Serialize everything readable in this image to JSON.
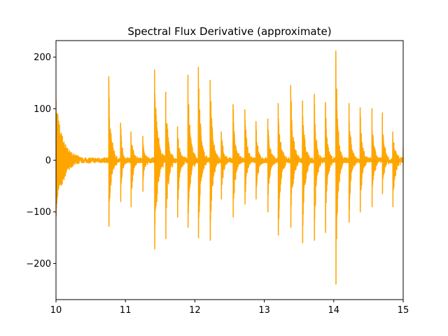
{
  "chart_data": {
    "type": "line",
    "title": "Spectral Flux Derivative (approximate)",
    "xlabel": "",
    "ylabel": "",
    "xlim": [
      10,
      15
    ],
    "ylim": [
      -270,
      232
    ],
    "x_ticks": [
      10,
      11,
      12,
      13,
      14,
      15
    ],
    "x_tick_labels": [
      "10",
      "11",
      "12",
      "13",
      "14",
      "15"
    ],
    "y_ticks": [
      -200,
      -100,
      0,
      100,
      200
    ],
    "y_tick_labels": [
      "−200",
      "−100",
      "0",
      "100",
      "200"
    ],
    "grid": false,
    "line_color": "#ffa500",
    "series": [
      {
        "onsets": [
          {
            "x": 10.0,
            "max": 115,
            "min": -108,
            "tail": 0.35
          },
          {
            "x": 10.76,
            "max": 162,
            "min": -128,
            "tail": 0.12
          },
          {
            "x": 10.93,
            "max": 72,
            "min": -80,
            "tail": 0.08
          },
          {
            "x": 11.08,
            "max": 55,
            "min": -90,
            "tail": 0.1
          },
          {
            "x": 11.25,
            "max": 45,
            "min": -60,
            "tail": 0.08
          },
          {
            "x": 11.42,
            "max": 175,
            "min": -172,
            "tail": 0.15
          },
          {
            "x": 11.58,
            "max": 132,
            "min": -152,
            "tail": 0.12
          },
          {
            "x": 11.75,
            "max": 65,
            "min": -110,
            "tail": 0.1
          },
          {
            "x": 11.9,
            "max": 165,
            "min": -130,
            "tail": 0.12
          },
          {
            "x": 12.05,
            "max": 180,
            "min": -150,
            "tail": 0.12
          },
          {
            "x": 12.22,
            "max": 155,
            "min": -155,
            "tail": 0.12
          },
          {
            "x": 12.38,
            "max": 55,
            "min": -75,
            "tail": 0.1
          },
          {
            "x": 12.55,
            "max": 108,
            "min": -110,
            "tail": 0.12
          },
          {
            "x": 12.72,
            "max": 98,
            "min": -85,
            "tail": 0.1
          },
          {
            "x": 12.88,
            "max": 75,
            "min": -75,
            "tail": 0.1
          },
          {
            "x": 13.05,
            "max": 80,
            "min": -100,
            "tail": 0.1
          },
          {
            "x": 13.2,
            "max": 110,
            "min": -145,
            "tail": 0.12
          },
          {
            "x": 13.38,
            "max": 145,
            "min": -130,
            "tail": 0.12
          },
          {
            "x": 13.55,
            "max": 115,
            "min": -160,
            "tail": 0.12
          },
          {
            "x": 13.72,
            "max": 128,
            "min": -155,
            "tail": 0.1
          },
          {
            "x": 13.88,
            "max": 112,
            "min": -140,
            "tail": 0.1
          },
          {
            "x": 14.03,
            "max": 212,
            "min": -240,
            "tail": 0.1
          },
          {
            "x": 14.22,
            "max": 110,
            "min": -120,
            "tail": 0.1
          },
          {
            "x": 14.38,
            "max": 102,
            "min": -100,
            "tail": 0.1
          },
          {
            "x": 14.55,
            "max": 100,
            "min": -90,
            "tail": 0.1
          },
          {
            "x": 14.7,
            "max": 92,
            "min": -65,
            "tail": 0.1
          },
          {
            "x": 14.85,
            "max": 55,
            "min": -90,
            "tail": 0.12
          },
          {
            "x": 15.0,
            "max": 25,
            "min": -22,
            "tail": 0.04
          }
        ],
        "baseline_amplitude": 5
      }
    ]
  }
}
